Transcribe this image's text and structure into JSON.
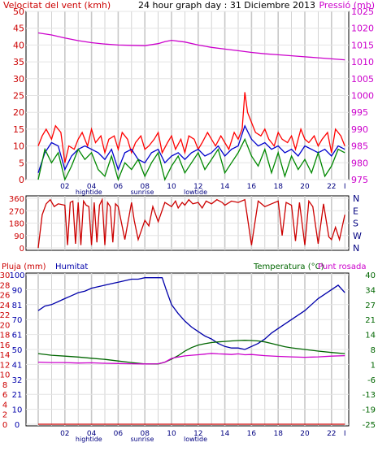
{
  "colors": {
    "wind": "#cc0000",
    "gust": "#ff0000",
    "wind_avg": "#0000cc",
    "wind_green": "#008800",
    "pressure": "#cc00cc",
    "rain": "#cc0000",
    "humidity": "#0000aa",
    "temperature": "#006600",
    "dewpoint": "#cc00cc",
    "grid": "#c8c8c8"
  },
  "chart_data": [
    {
      "type": "line",
      "title": "24 hour graph day : 31 Diciembre 2013",
      "left_label": "Velocitat del vent (kmh)",
      "right_label": "Pressió (mb)",
      "x_ticks": [
        "02",
        "04",
        "06",
        "08",
        "10",
        "12",
        "14",
        "16",
        "18",
        "20",
        "22",
        "I"
      ],
      "x_markers": [
        "hightide",
        "sunrise",
        "lowtide"
      ],
      "ylim": [
        0,
        50
      ],
      "y_ticks": [
        "0",
        "5",
        "10",
        "15",
        "20",
        "25",
        "30",
        "35",
        "40",
        "45",
        "50"
      ],
      "y2lim": [
        975,
        1025
      ],
      "y2_ticks": [
        "975",
        "980",
        "985",
        "990",
        "995",
        "1000",
        "1005",
        "1010",
        "1015",
        "1020",
        "1025"
      ],
      "series": [
        {
          "key": "gust",
          "axis": "left",
          "color": "#ff0000",
          "x": [
            0,
            0.3,
            0.6,
            1,
            1.3,
            1.7,
            2,
            2.3,
            2.7,
            3,
            3.3,
            3.7,
            4,
            4.3,
            4.7,
            5,
            5.3,
            5.7,
            6,
            6.3,
            6.7,
            7,
            7.3,
            7.7,
            8,
            8.3,
            8.7,
            9,
            9.3,
            9.7,
            10,
            10.3,
            10.7,
            11,
            11.3,
            11.7,
            12,
            12.3,
            12.7,
            13,
            13.3,
            13.7,
            14,
            14.3,
            14.7,
            15,
            15.3,
            15.5,
            15.7,
            16,
            16.3,
            16.7,
            17,
            17.3,
            17.7,
            18,
            18.3,
            18.7,
            19,
            19.3,
            19.7,
            20,
            20.3,
            20.7,
            21,
            21.3,
            21.7,
            22,
            22.3,
            22.7,
            23
          ],
          "y": [
            10,
            13,
            15,
            12,
            16,
            14,
            5,
            10,
            9,
            12,
            14,
            10,
            15,
            11,
            13,
            8,
            12,
            13,
            9,
            14,
            12,
            8,
            11,
            13,
            9,
            10,
            12,
            14,
            8,
            11,
            13,
            9,
            12,
            8,
            13,
            12,
            9,
            11,
            14,
            12,
            10,
            13,
            11,
            9,
            14,
            12,
            15,
            26,
            20,
            17,
            14,
            13,
            15,
            12,
            10,
            14,
            12,
            11,
            13,
            9,
            15,
            12,
            11,
            13,
            10,
            12,
            14,
            8,
            15,
            13,
            10
          ]
        },
        {
          "key": "avg",
          "axis": "left",
          "color": "#0000cc",
          "x": [
            0,
            0.5,
            1,
            1.5,
            2,
            2.5,
            3,
            3.5,
            4,
            4.5,
            5,
            5.5,
            6,
            6.5,
            7,
            7.5,
            8,
            8.5,
            9,
            9.5,
            10,
            10.5,
            11,
            11.5,
            12,
            12.5,
            13,
            13.5,
            14,
            14.5,
            15,
            15.5,
            16,
            16.5,
            17,
            17.5,
            18,
            18.5,
            19,
            19.5,
            20,
            20.5,
            21,
            21.5,
            22,
            22.5,
            23
          ],
          "y": [
            2,
            8,
            11,
            10,
            3,
            7,
            9,
            10,
            9,
            8,
            6,
            9,
            3,
            8,
            9,
            6,
            5,
            8,
            9,
            5,
            7,
            8,
            6,
            8,
            9,
            7,
            8,
            10,
            7,
            9,
            10,
            16,
            12,
            10,
            11,
            9,
            10,
            8,
            9,
            7,
            10,
            9,
            8,
            9,
            7,
            10,
            9
          ]
        },
        {
          "key": "wind",
          "axis": "left",
          "color": "#008800",
          "x": [
            0,
            0.5,
            1,
            1.5,
            2,
            2.5,
            3,
            3.5,
            4,
            4.5,
            5,
            5.5,
            6,
            6.5,
            7,
            7.5,
            8,
            8.5,
            9,
            9.5,
            10,
            10.5,
            11,
            11.5,
            12,
            12.5,
            13,
            13.5,
            14,
            14.5,
            15,
            15.5,
            16,
            16.5,
            17,
            17.5,
            18,
            18.5,
            19,
            19.5,
            20,
            20.5,
            21,
            21.5,
            22,
            22.5,
            23
          ],
          "y": [
            0,
            9,
            5,
            8,
            0,
            4,
            9,
            6,
            8,
            3,
            1,
            7,
            0,
            5,
            3,
            6,
            1,
            5,
            8,
            0,
            4,
            7,
            2,
            5,
            8,
            3,
            6,
            9,
            2,
            5,
            8,
            12,
            7,
            4,
            9,
            2,
            8,
            1,
            7,
            3,
            6,
            2,
            8,
            1,
            4,
            9,
            8
          ]
        },
        {
          "key": "pressure",
          "axis": "right",
          "color": "#cc00cc",
          "x": [
            0,
            1,
            2,
            3,
            4,
            5,
            6,
            7,
            8,
            9,
            9.5,
            10,
            11,
            12,
            13,
            14,
            15,
            16,
            17,
            18,
            19,
            20,
            21,
            22,
            23
          ],
          "y": [
            1018.6,
            1018,
            1017.1,
            1016.3,
            1015.7,
            1015.3,
            1015,
            1014.9,
            1014.8,
            1015.4,
            1016,
            1016.4,
            1015.9,
            1015,
            1014.3,
            1013.8,
            1013.3,
            1012.8,
            1012.4,
            1012.1,
            1011.8,
            1011.5,
            1011.2,
            1010.9,
            1010.6
          ]
        }
      ]
    },
    {
      "type": "line",
      "left_label": "",
      "ylim": [
        0,
        360
      ],
      "y_ticks": [
        "0",
        "90",
        "180",
        "270",
        "360"
      ],
      "right_ticks": [
        "N",
        "W",
        "S",
        "E",
        "N"
      ],
      "series": [
        {
          "key": "direction",
          "color": "#cc0000",
          "x": [
            0,
            0.3,
            0.6,
            0.9,
            1.2,
            1.5,
            2,
            2.2,
            2.4,
            2.6,
            2.8,
            3,
            3.2,
            3.4,
            3.6,
            3.8,
            4,
            4.2,
            4.4,
            4.6,
            4.8,
            5,
            5.2,
            5.4,
            5.6,
            5.8,
            6,
            6.5,
            7,
            7.2,
            7.5,
            8,
            8.3,
            8.6,
            9,
            9.5,
            10,
            10.3,
            10.5,
            10.8,
            11,
            11.3,
            11.6,
            12,
            12.3,
            12.6,
            13,
            13.4,
            13.8,
            14,
            14.5,
            15,
            15.5,
            16,
            16.5,
            17,
            17.5,
            18,
            18.3,
            18.6,
            19,
            19.3,
            19.6,
            20,
            20.3,
            20.6,
            21,
            21.4,
            21.8,
            22,
            22.3,
            22.6,
            23
          ],
          "y": [
            0,
            240,
            320,
            350,
            300,
            320,
            310,
            20,
            330,
            340,
            30,
            330,
            20,
            340,
            310,
            300,
            20,
            330,
            40,
            310,
            350,
            20,
            330,
            300,
            40,
            320,
            300,
            60,
            330,
            200,
            60,
            200,
            160,
            300,
            190,
            330,
            300,
            340,
            290,
            330,
            310,
            350,
            320,
            330,
            290,
            340,
            320,
            350,
            330,
            310,
            340,
            330,
            350,
            20,
            340,
            300,
            320,
            340,
            90,
            330,
            310,
            50,
            330,
            20,
            340,
            300,
            30,
            320,
            80,
            60,
            150,
            60,
            240
          ]
        }
      ]
    },
    {
      "type": "line",
      "left_label": "Pluja (mm)",
      "left_label_2": "Humitat",
      "right_label": "Temperatura (°C)",
      "right_label_2": "Punt rosada",
      "rain_ticks": [
        "0",
        "2",
        "4",
        "6",
        "8",
        "10",
        "12",
        "14",
        "16",
        "18",
        "20",
        "22",
        "24",
        "26",
        "28",
        "30"
      ],
      "humidity_ticks": [
        "0",
        "10",
        "21",
        "32",
        "41",
        "50",
        "61",
        "70",
        "81",
        "90",
        "100"
      ],
      "y2_ticks": [
        "-25",
        "-22",
        "-19",
        "-16",
        "-13",
        "-9",
        "-6",
        "-3",
        "1",
        "4",
        "8",
        "11",
        "14",
        "17",
        "21",
        "24",
        "27",
        "30",
        "34",
        "37",
        "40"
      ],
      "rain_lim": [
        0,
        30
      ],
      "humidity_lim": [
        0,
        100
      ],
      "temp_lim": [
        -25,
        40
      ],
      "series": [
        {
          "key": "rain",
          "axis": "rain",
          "color": "#cc0000",
          "x": [
            0,
            23
          ],
          "y": [
            0,
            0
          ]
        },
        {
          "key": "humidity",
          "axis": "humidity",
          "color": "#0000aa",
          "x": [
            0,
            0.5,
            1,
            1.5,
            2,
            2.5,
            3,
            3.5,
            4,
            4.5,
            5,
            5.5,
            6,
            6.5,
            7,
            7.5,
            8,
            8.5,
            9,
            9.3,
            9.6,
            10,
            10.5,
            11,
            11.5,
            12,
            12.5,
            13,
            13.5,
            14,
            14.5,
            15,
            15.5,
            16,
            16.5,
            17,
            17.5,
            18,
            18.5,
            19,
            19.5,
            20,
            20.5,
            21,
            21.5,
            22,
            22.5,
            23
          ],
          "y": [
            76,
            79,
            80,
            82,
            84,
            86,
            88,
            89,
            91,
            92,
            93,
            94,
            95,
            96,
            97,
            97,
            98,
            98,
            98,
            98,
            90,
            80,
            74,
            69,
            65,
            62,
            59,
            57,
            54,
            52,
            51,
            51,
            50,
            52,
            54,
            57,
            61,
            64,
            67,
            70,
            73,
            76,
            80,
            84,
            87,
            90,
            93,
            88
          ]
        },
        {
          "key": "temperature",
          "axis": "temp",
          "color": "#006600",
          "x": [
            0,
            1,
            2,
            3,
            4,
            5,
            6,
            7,
            8,
            9,
            9.5,
            10,
            10.5,
            11,
            11.5,
            12,
            12.5,
            13,
            13.5,
            14,
            14.5,
            15,
            15.5,
            16,
            16.5,
            17,
            17.5,
            18,
            18.5,
            19,
            20,
            21,
            22,
            23
          ],
          "y": [
            5.7,
            5,
            4.6,
            4.2,
            3.7,
            3.2,
            2.5,
            1.8,
            1.2,
            1.2,
            2,
            3.3,
            4.8,
            6.8,
            8.3,
            9.4,
            10,
            10.5,
            10.8,
            11,
            11.2,
            11.4,
            11.5,
            11.4,
            11.2,
            10.8,
            10.1,
            9.4,
            8.7,
            8.2,
            7.5,
            6.8,
            6.2,
            5.7
          ]
        },
        {
          "key": "dewpoint",
          "axis": "temp",
          "color": "#cc00cc",
          "x": [
            0,
            1,
            2,
            3,
            4,
            5,
            6,
            7,
            8,
            9,
            9.5,
            10,
            10.5,
            11,
            11.5,
            12,
            12.5,
            13,
            13.5,
            14,
            14.5,
            15,
            15.5,
            16,
            17,
            18,
            19,
            20,
            21,
            22,
            23
          ],
          "y": [
            2,
            1.8,
            1.8,
            1.6,
            1.7,
            1.5,
            1.4,
            1.3,
            1.2,
            1.3,
            2,
            3.6,
            4.2,
            4.7,
            5,
            5.2,
            5.5,
            5.8,
            5.6,
            5.5,
            5.3,
            5.6,
            5.2,
            5.3,
            4.8,
            4.5,
            4.3,
            4.1,
            4.3,
            4.6,
            4.8
          ]
        }
      ]
    }
  ]
}
